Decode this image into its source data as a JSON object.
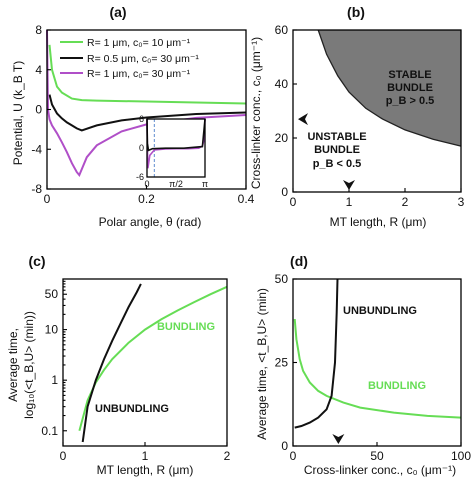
{
  "chart_data": [
    {
      "panel": "(a)",
      "type": "line",
      "xlabel": "Polar angle, θ (rad)",
      "ylabel": "Potential, U (k_B T)",
      "xlim": [
        0,
        0.4
      ],
      "ylim": [
        -8,
        8
      ],
      "xticks": [
        "0",
        "0.2",
        "0.4"
      ],
      "yticks": [
        "8",
        "4",
        "0",
        "-4",
        "-8"
      ],
      "legend": [
        {
          "label": "R= 1 μm,   c₀= 10 μm⁻¹",
          "color": "#66dd55"
        },
        {
          "label": "R= 0.5 μm, c₀= 30 μm⁻¹",
          "color": "#111111"
        },
        {
          "label": "R= 1 μm,   c₀= 30 μm⁻¹",
          "color": "#b04fc8"
        }
      ],
      "series": [
        {
          "color": "#66dd55",
          "x": [
            0.005,
            0.01,
            0.02,
            0.03,
            0.05,
            0.07,
            0.1,
            0.15,
            0.2,
            0.3,
            0.4
          ],
          "y": [
            6.5,
            4.0,
            2.3,
            1.7,
            1.1,
            0.95,
            0.9,
            0.85,
            0.8,
            0.7,
            0.6
          ]
        },
        {
          "color": "#111111",
          "x": [
            0.005,
            0.01,
            0.02,
            0.03,
            0.04,
            0.05,
            0.06,
            0.07,
            0.1,
            0.15,
            0.2,
            0.3,
            0.4
          ],
          "y": [
            1.5,
            0.5,
            -0.4,
            -0.9,
            -1.3,
            -1.6,
            -1.9,
            -2.1,
            -1.6,
            -1.1,
            -0.8,
            -0.45,
            -0.3
          ]
        },
        {
          "color": "#b04fc8",
          "x": [
            0.0,
            0.002,
            0.005,
            0.01,
            0.02,
            0.03,
            0.04,
            0.05,
            0.06,
            0.065,
            0.08,
            0.1,
            0.15,
            0.2,
            0.3,
            0.4
          ],
          "y": [
            8.0,
            0.0,
            -1.0,
            -1.6,
            -2.4,
            -3.3,
            -4.3,
            -5.4,
            -6.3,
            -6.6,
            -4.8,
            -3.6,
            -2.2,
            -1.5,
            -0.85,
            -0.55
          ]
        }
      ],
      "inset": {
        "xlim": [
          0,
          3.1416
        ],
        "ylim": [
          -6,
          6
        ],
        "xticks": [
          "0",
          "π/2",
          "π"
        ],
        "yticks": [
          "6",
          "0",
          "-6"
        ],
        "series": [
          {
            "color": "#b04fc8",
            "x": [
              0.0,
              0.02,
              0.05,
              0.15,
              0.4,
              1.0,
              1.6,
              2.2,
              2.8,
              3.0,
              3.08,
              3.12,
              3.14
            ],
            "y": [
              6.0,
              0.0,
              -4.2,
              -1.5,
              -0.4,
              -0.2,
              -0.15,
              -0.15,
              -0.05,
              0.4,
              1.5,
              4.0,
              6.0
            ]
          },
          {
            "color": "#111111",
            "x": [
              0.0,
              0.02,
              0.08,
              0.3,
              1.0,
              2.0,
              3.0,
              3.14
            ],
            "y": [
              6.0,
              1.0,
              -0.5,
              -0.15,
              -0.05,
              -0.05,
              0.3,
              6.0
            ]
          }
        ],
        "dashed_marker_x": 0.4
      }
    },
    {
      "panel": "(b)",
      "type": "area",
      "xlabel": "MT length, R (μm)",
      "ylabel": "Cross-linker conc., c₀ (μm⁻¹)",
      "xlim": [
        0,
        3
      ],
      "ylim": [
        0,
        60
      ],
      "xticks": [
        "0",
        "1",
        "2",
        "3"
      ],
      "yticks": [
        "0",
        "20",
        "40",
        "60"
      ],
      "boundary": {
        "x": [
          0.45,
          0.6,
          0.8,
          1.0,
          1.3,
          1.6,
          2.0,
          2.5,
          3.0
        ],
        "y": [
          60,
          51,
          43,
          37,
          31,
          27,
          23,
          19.5,
          17
        ]
      },
      "regions": [
        {
          "label_lines": [
            "STABLE",
            "BUNDLE",
            "p_B > 0.5"
          ],
          "fill": "#7a7a7a"
        },
        {
          "label_lines": [
            "UNSTABLE",
            "BUNDLE",
            "p_B < 0.5"
          ],
          "fill": "#ffffff"
        }
      ],
      "markers": [
        {
          "axis": "y",
          "value": 27
        },
        {
          "axis": "x",
          "value": 1.0
        }
      ]
    },
    {
      "panel": "(c)",
      "type": "line",
      "xlabel": "MT length, R (μm)",
      "ylabel_lines": [
        "Average time,",
        "log₁₀(<t_B,U> (min))"
      ],
      "xlim": [
        0,
        2
      ],
      "log_y": true,
      "ylim": [
        0.05,
        100
      ],
      "xticks": [
        "0",
        "1",
        "2"
      ],
      "yticks": [
        {
          "v": 0.1,
          "label": "0.1"
        },
        {
          "v": 1,
          "label": "1"
        },
        {
          "v": 10,
          "label": "10"
        },
        {
          "v": 50,
          "label": "50"
        }
      ],
      "labels": [
        {
          "text": "BUNDLING",
          "color": "#66dd55"
        },
        {
          "text": "UNBUNDLING",
          "color": "#000000"
        }
      ],
      "series": [
        {
          "label": "BUNDLING",
          "color": "#66dd55",
          "x": [
            0.2,
            0.3,
            0.4,
            0.5,
            0.6,
            0.8,
            1.0,
            1.2,
            1.4,
            1.6,
            1.8,
            2.0
          ],
          "y": [
            0.1,
            0.4,
            0.9,
            1.6,
            2.6,
            5.5,
            10,
            16,
            24,
            35,
            50,
            70
          ]
        },
        {
          "label": "UNBUNDLING",
          "color": "#111111",
          "x": [
            0.24,
            0.3,
            0.4,
            0.5,
            0.6,
            0.7,
            0.8,
            0.9,
            0.95
          ],
          "y": [
            0.06,
            0.3,
            1.0,
            2.6,
            6,
            13,
            28,
            55,
            80
          ]
        }
      ]
    },
    {
      "panel": "(d)",
      "type": "line",
      "xlabel": "Cross-linker conc., c₀ (μm⁻¹)",
      "ylabel": "Average time, <t_B,U> (min)",
      "xlim": [
        0,
        100
      ],
      "ylim": [
        0,
        50
      ],
      "xticks": [
        "0",
        "50",
        "100"
      ],
      "yticks": [
        "0",
        "25",
        "50"
      ],
      "labels": [
        {
          "text": "UNBUNDLING",
          "color": "#000000"
        },
        {
          "text": "BUNDLING",
          "color": "#66dd55"
        }
      ],
      "series": [
        {
          "label": "BUNDLING",
          "color": "#66dd55",
          "x": [
            1,
            2,
            4,
            6,
            10,
            15,
            20,
            30,
            40,
            60,
            80,
            100
          ],
          "y": [
            38,
            32,
            26,
            22.5,
            19,
            16.5,
            15,
            13,
            11.5,
            10,
            9,
            8.5
          ]
        },
        {
          "label": "UNBUNDLING",
          "color": "#111111",
          "x": [
            1,
            5,
            10,
            15,
            20,
            23,
            25,
            26,
            26.5
          ],
          "y": [
            5.5,
            6,
            7,
            8.5,
            11,
            15,
            25,
            40,
            50
          ]
        }
      ],
      "markers": [
        {
          "axis": "x",
          "value": 27
        }
      ]
    }
  ],
  "panel_labels": [
    "(a)",
    "(b)",
    "(c)",
    "(d)"
  ]
}
